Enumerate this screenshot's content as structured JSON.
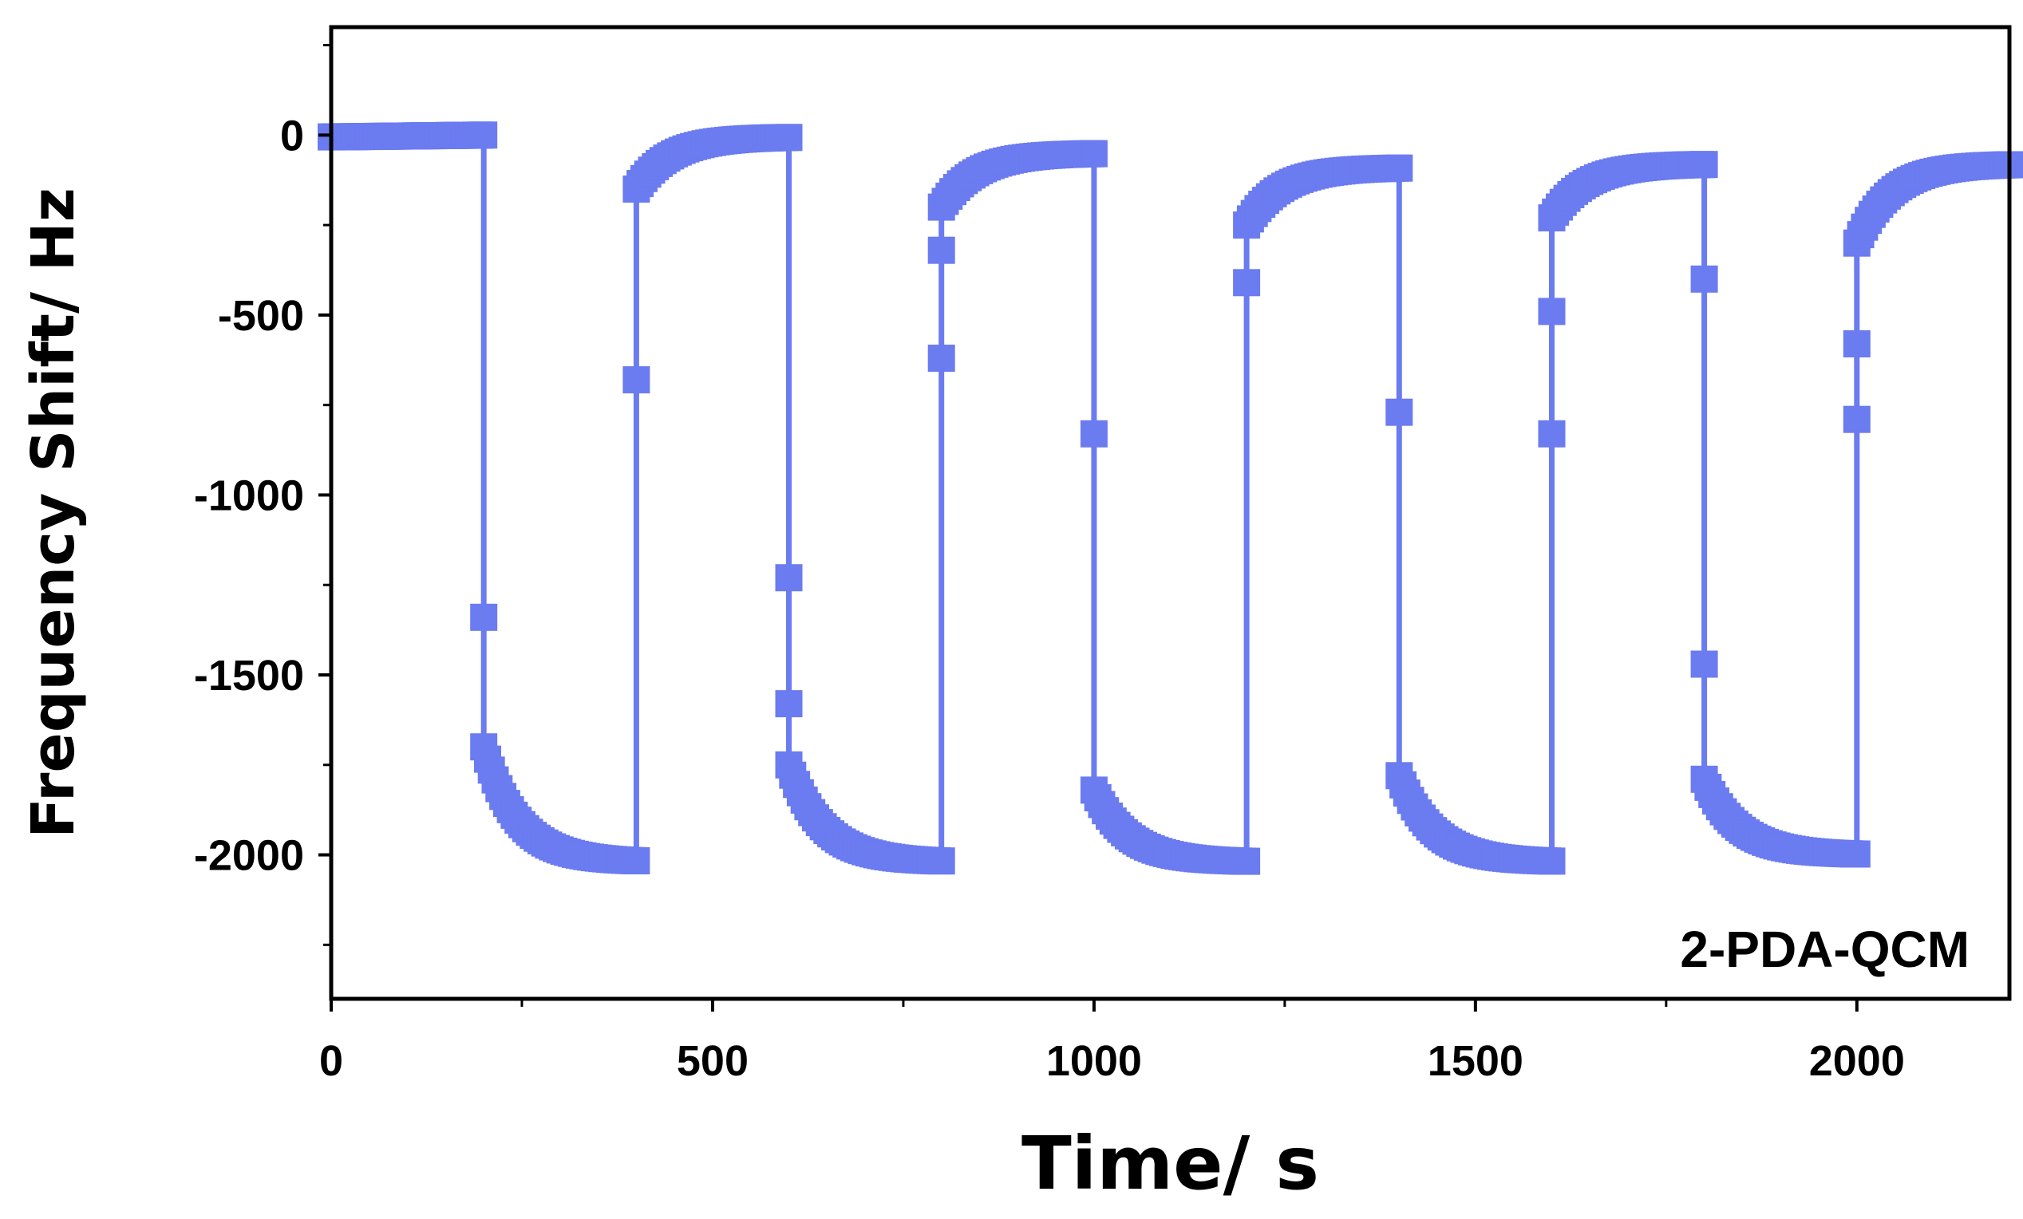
{
  "chart_data": {
    "type": "line",
    "title": "",
    "xlabel": "Time/ s",
    "ylabel": "Frequency Shift/ Hz",
    "annotation": "2-PDA-QCM",
    "xlim": [
      0,
      2200
    ],
    "ylim": [
      -2400,
      300
    ],
    "x_ticks": [
      0,
      500,
      1000,
      1500,
      2000
    ],
    "x_tick_labels": [
      "0",
      "500",
      "1000",
      "1500",
      "2000"
    ],
    "y_ticks": [
      0,
      -500,
      -1000,
      -1500,
      -2000
    ],
    "y_tick_labels": [
      "0",
      "-500",
      "-1000",
      "-1500",
      "-2000"
    ],
    "grid": false,
    "legend": "none",
    "series_color": "#6b7bf0",
    "marker": "square",
    "series": [
      {
        "segments": [
          {
            "t_start": 0,
            "t_end": 200,
            "f_start": -5,
            "f_end": 0
          },
          {
            "t_start": 200,
            "t_end": 400,
            "f_start": -1700,
            "f_end": -2020
          },
          {
            "t_start": 400,
            "t_end": 600,
            "f_start": -150,
            "f_end": -5
          },
          {
            "t_start": 600,
            "t_end": 800,
            "f_start": -1750,
            "f_end": -2020
          },
          {
            "t_start": 800,
            "t_end": 1000,
            "f_start": -200,
            "f_end": -50
          },
          {
            "t_start": 1000,
            "t_end": 1200,
            "f_start": -1820,
            "f_end": -2020
          },
          {
            "t_start": 1200,
            "t_end": 1400,
            "f_start": -250,
            "f_end": -90
          },
          {
            "t_start": 1400,
            "t_end": 1600,
            "f_start": -1780,
            "f_end": -2020
          },
          {
            "t_start": 1600,
            "t_end": 1800,
            "f_start": -230,
            "f_end": -80
          },
          {
            "t_start": 1800,
            "t_end": 2000,
            "f_start": -1790,
            "f_end": -2000
          },
          {
            "t_start": 2000,
            "t_end": 2200,
            "f_start": -300,
            "f_end": -80
          }
        ],
        "transition_points": [
          {
            "x": 200,
            "y": -1340
          },
          {
            "x": 400,
            "y": -680
          },
          {
            "x": 600,
            "y": -1230
          },
          {
            "x": 600,
            "y": -1580
          },
          {
            "x": 800,
            "y": -320
          },
          {
            "x": 800,
            "y": -620
          },
          {
            "x": 1000,
            "y": -830
          },
          {
            "x": 1200,
            "y": -410
          },
          {
            "x": 1400,
            "y": -770
          },
          {
            "x": 1600,
            "y": -490
          },
          {
            "x": 1600,
            "y": -830
          },
          {
            "x": 1800,
            "y": -400
          },
          {
            "x": 1800,
            "y": -1470
          },
          {
            "x": 2000,
            "y": -580
          },
          {
            "x": 2000,
            "y": -790
          }
        ]
      }
    ]
  }
}
